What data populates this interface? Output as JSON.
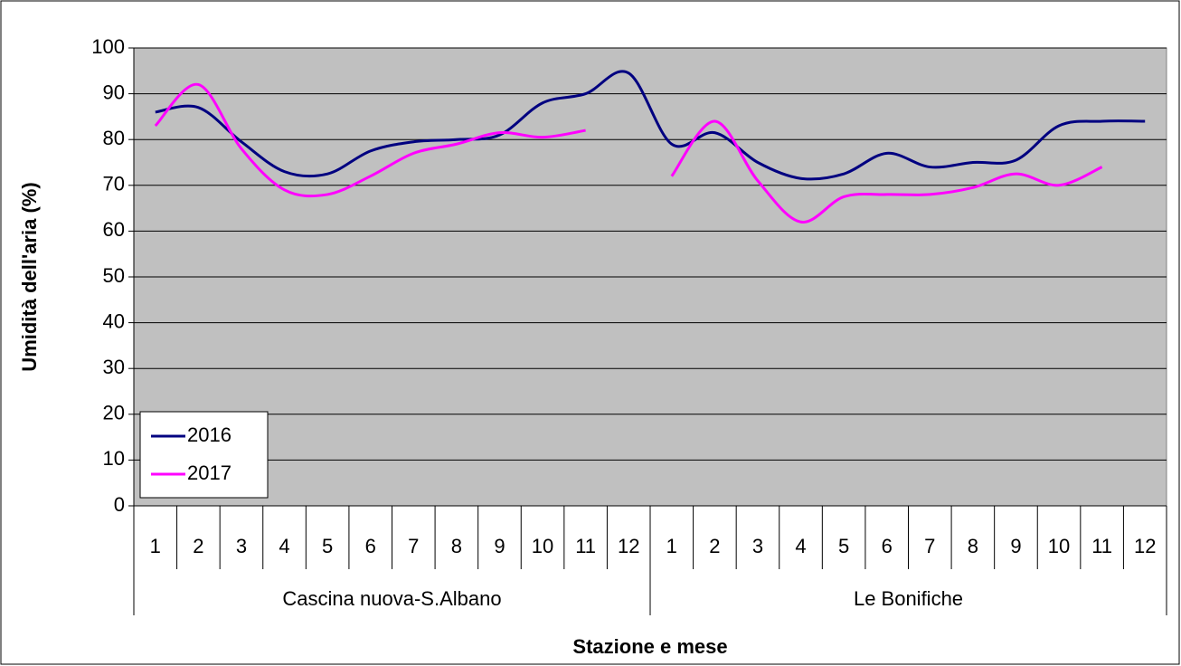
{
  "chart_data": {
    "type": "line",
    "xlabel": "Stazione e mese",
    "ylabel": "Umidità dell'aria (%)",
    "category_groups": [
      "Cascina nuova-S.Albano",
      "Le Bonifiche"
    ],
    "categories": [
      "1",
      "2",
      "3",
      "4",
      "5",
      "6",
      "7",
      "8",
      "9",
      "10",
      "11",
      "12",
      "1",
      "2",
      "3",
      "4",
      "5",
      "6",
      "7",
      "8",
      "9",
      "10",
      "11",
      "12"
    ],
    "series": [
      {
        "name": "2016",
        "color": "#000080",
        "values": [
          86,
          87,
          79.5,
          73,
          72.5,
          77.5,
          79.5,
          80,
          81,
          88,
          90,
          94.5,
          79,
          81.5,
          75,
          71.5,
          72.5,
          77,
          74,
          75,
          75.5,
          83,
          84,
          84
        ]
      },
      {
        "name": "2017",
        "color": "#ff00ff",
        "values": [
          83,
          92,
          78,
          69,
          68,
          72,
          77,
          79,
          81.5,
          80.5,
          82,
          null,
          72,
          84,
          71,
          62,
          67.5,
          68,
          68,
          69.5,
          72.5,
          70,
          74,
          null
        ]
      }
    ],
    "ylim": [
      0,
      100
    ],
    "yticks": [
      0,
      10,
      20,
      30,
      40,
      50,
      60,
      70,
      80,
      90,
      100
    ],
    "grid": true,
    "legend": "lower-left",
    "plot_background": "#c0c0c0"
  }
}
